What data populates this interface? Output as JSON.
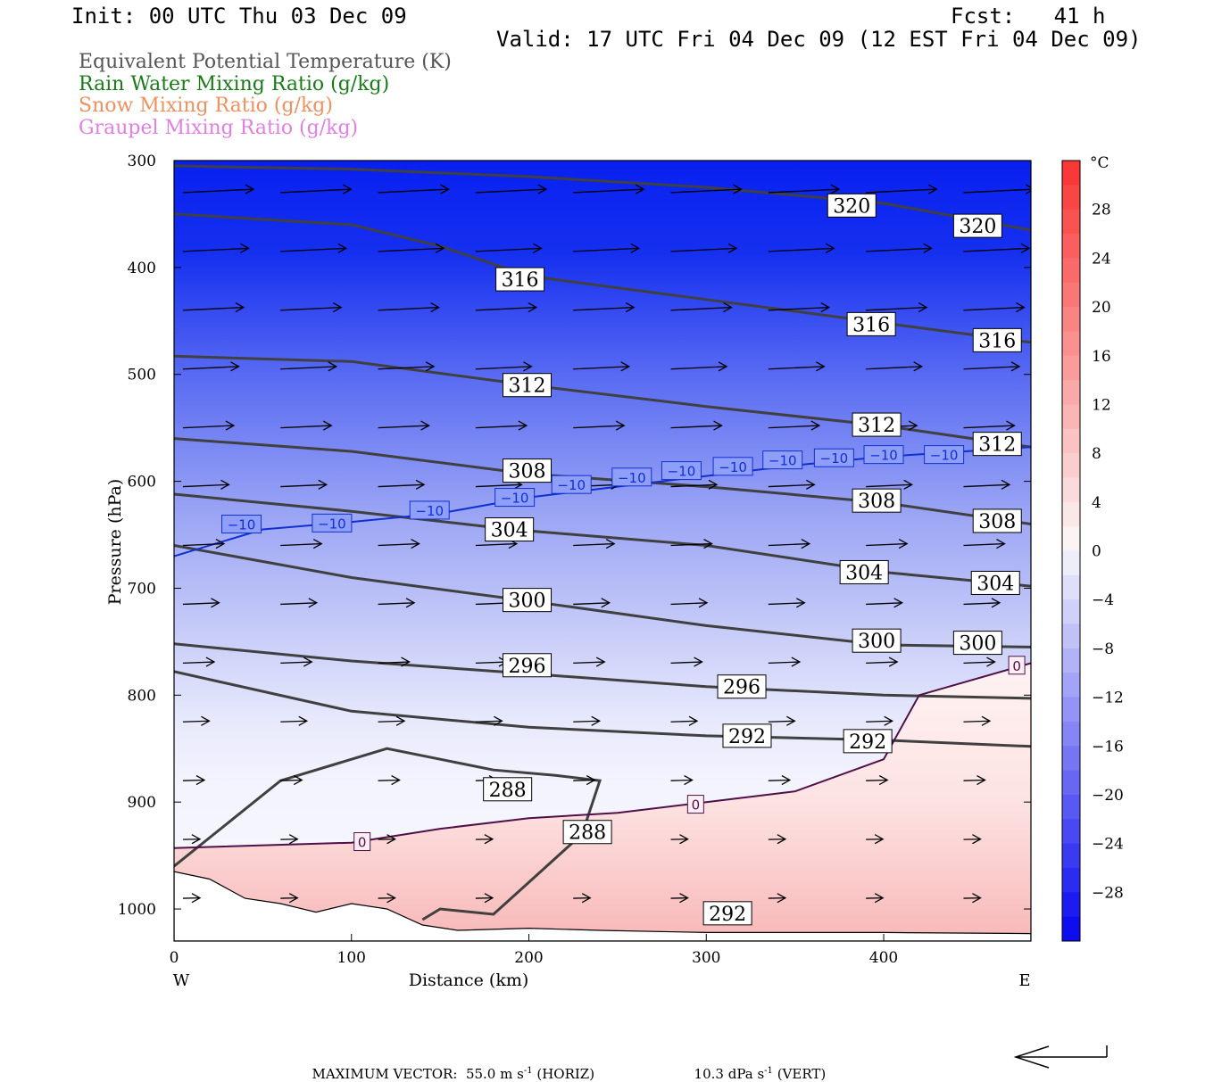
{
  "header": {
    "init": "Init: 00 UTC Thu 03 Dec 09",
    "fcst": "Fcst:   41 h",
    "valid": "Valid: 17 UTC Fri 04 Dec 09 (12 EST Fri 04 Dec 09)"
  },
  "legend": [
    {
      "label": "Equivalent Potential Temperature (K)",
      "color": "#555555"
    },
    {
      "label": "Rain Water Mixing Ratio (g/kg)",
      "color": "#1a7a1a"
    },
    {
      "label": "Snow Mixing Ratio (g/kg)",
      "color": "#ee9060"
    },
    {
      "label": "Graupel Mixing Ratio (g/kg)",
      "color": "#e080e0"
    }
  ],
  "chart_data": {
    "type": "cross-section",
    "xlabel": "Distance (km)",
    "ylabel": "Pressure (hPa)",
    "xlim": [
      0,
      483
    ],
    "ylim": [
      300,
      1030
    ],
    "xticks": [
      0,
      100,
      200,
      300,
      400
    ],
    "yticks": [
      300,
      400,
      500,
      600,
      700,
      800,
      900,
      1000
    ],
    "x_end_labels": {
      "left": "W",
      "right": "E"
    },
    "colorbar": {
      "unit": "°C",
      "ticks": [
        28,
        24,
        20,
        16,
        12,
        8,
        4,
        0,
        -4,
        -8,
        -12,
        -16,
        -20,
        -24,
        -28
      ],
      "range": [
        -32,
        32
      ]
    },
    "theta_e_contours": [
      {
        "value": 320,
        "pts": [
          [
            0,
            305
          ],
          [
            100,
            308
          ],
          [
            200,
            315
          ],
          [
            300,
            325
          ],
          [
            400,
            340
          ],
          [
            483,
            365
          ]
        ],
        "labels": [
          [
            382,
            342
          ],
          [
            453,
            361
          ]
        ]
      },
      {
        "value": 316,
        "pts": [
          [
            0,
            350
          ],
          [
            100,
            360
          ],
          [
            150,
            380
          ],
          [
            200,
            408
          ],
          [
            300,
            430
          ],
          [
            400,
            452
          ],
          [
            483,
            470
          ]
        ],
        "labels": [
          [
            195,
            411
          ],
          [
            393,
            453
          ],
          [
            464,
            468
          ]
        ]
      },
      {
        "value": 312,
        "pts": [
          [
            0,
            483
          ],
          [
            100,
            488
          ],
          [
            200,
            510
          ],
          [
            300,
            530
          ],
          [
            400,
            548
          ],
          [
            483,
            568
          ]
        ],
        "labels": [
          [
            199,
            510
          ],
          [
            396,
            547
          ],
          [
            464,
            565
          ]
        ]
      },
      {
        "value": 308,
        "pts": [
          [
            0,
            560
          ],
          [
            100,
            572
          ],
          [
            200,
            593
          ],
          [
            300,
            605
          ],
          [
            400,
            620
          ],
          [
            483,
            640
          ]
        ],
        "labels": [
          [
            199,
            590
          ],
          [
            396,
            618
          ],
          [
            464,
            637
          ]
        ]
      },
      {
        "value": 304,
        "pts": [
          [
            0,
            612
          ],
          [
            100,
            628
          ],
          [
            190,
            645
          ],
          [
            300,
            660
          ],
          [
            400,
            685
          ],
          [
            483,
            698
          ]
        ],
        "labels": [
          [
            189,
            645
          ],
          [
            389,
            685
          ],
          [
            463,
            695
          ]
        ]
      },
      {
        "value": 300,
        "pts": [
          [
            0,
            660
          ],
          [
            100,
            690
          ],
          [
            200,
            712
          ],
          [
            300,
            735
          ],
          [
            400,
            753
          ],
          [
            483,
            755
          ]
        ],
        "labels": [
          [
            199,
            711
          ],
          [
            396,
            749
          ],
          [
            453,
            751
          ]
        ]
      },
      {
        "value": 296,
        "pts": [
          [
            0,
            752
          ],
          [
            100,
            768
          ],
          [
            200,
            780
          ],
          [
            300,
            792
          ],
          [
            400,
            800
          ],
          [
            483,
            803
          ]
        ],
        "labels": [
          [
            199,
            772
          ],
          [
            320,
            792
          ]
        ]
      },
      {
        "value": 292,
        "pts": [
          [
            0,
            778
          ],
          [
            100,
            815
          ],
          [
            200,
            830
          ],
          [
            300,
            838
          ],
          [
            400,
            842
          ],
          [
            483,
            848
          ]
        ],
        "labels": [
          [
            323,
            838
          ],
          [
            391,
            843
          ],
          [
            312,
            1004
          ]
        ]
      },
      {
        "value": 288,
        "pts": [
          [
            0,
            960
          ],
          [
            60,
            880
          ],
          [
            120,
            850
          ],
          [
            180,
            870
          ],
          [
            215,
            875
          ],
          [
            240,
            880
          ],
          [
            230,
            930
          ],
          [
            200,
            975
          ],
          [
            180,
            1005
          ],
          [
            150,
            1000
          ],
          [
            140,
            1010
          ]
        ],
        "labels": [
          [
            188,
            888
          ],
          [
            233,
            928
          ]
        ]
      }
    ],
    "temperature_contours": [
      {
        "value": -10,
        "pts": [
          [
            0,
            670
          ],
          [
            50,
            645
          ],
          [
            100,
            638
          ],
          [
            150,
            630
          ],
          [
            200,
            615
          ],
          [
            250,
            605
          ],
          [
            300,
            595
          ],
          [
            350,
            585
          ],
          [
            400,
            577
          ],
          [
            483,
            568
          ]
        ],
        "labels": [
          [
            38,
            640
          ],
          [
            89,
            639
          ],
          [
            144,
            627
          ],
          [
            192,
            615
          ],
          [
            224,
            603
          ],
          [
            258,
            596
          ],
          [
            286,
            590
          ],
          [
            315,
            586
          ],
          [
            343,
            580
          ],
          [
            372,
            578
          ],
          [
            400,
            575
          ],
          [
            434,
            575
          ]
        ]
      },
      {
        "value": 0,
        "pts": [
          [
            0,
            943
          ],
          [
            100,
            938
          ],
          [
            150,
            925
          ],
          [
            200,
            915
          ],
          [
            250,
            910
          ],
          [
            300,
            900
          ],
          [
            350,
            890
          ],
          [
            400,
            860
          ],
          [
            420,
            800
          ],
          [
            483,
            770
          ]
        ],
        "labels": [
          [
            106,
            937
          ],
          [
            294,
            902
          ],
          [
            475,
            772
          ]
        ]
      }
    ],
    "max_vector": {
      "horiz": "55.0",
      "horiz_unit": "m s",
      "horiz_exp": "-1",
      "horiz_tag": "(HORIZ)",
      "vert": "10.3",
      "vert_unit": "dPa s",
      "vert_exp": "-1",
      "vert_tag": "(VERT)",
      "label": "MAXIMUM VECTOR:"
    }
  }
}
